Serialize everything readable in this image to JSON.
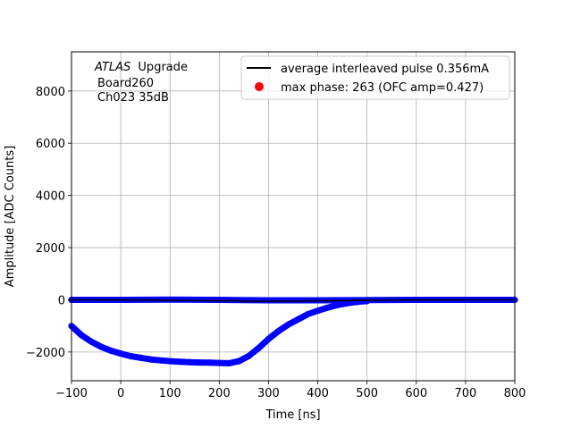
{
  "chart_data": {
    "type": "scatter",
    "xlabel": "Time [ns]",
    "ylabel": "Amplitude [ADC Counts]",
    "xlim": [
      -100,
      800
    ],
    "ylim": [
      -3100,
      9500
    ],
    "xticks": [
      -100,
      0,
      100,
      200,
      300,
      400,
      500,
      600,
      700,
      800
    ],
    "yticks": [
      -2000,
      0,
      2000,
      4000,
      6000,
      8000
    ],
    "xtick_labels": [
      "−100",
      "0",
      "100",
      "200",
      "300",
      "400",
      "500",
      "600",
      "700",
      "800"
    ],
    "ytick_labels": [
      "−2000",
      "0",
      "2000",
      "4000",
      "6000",
      "8000"
    ],
    "grid": true,
    "legend_position": "top-right",
    "annotation": {
      "atlas": "ATLAS",
      "upgrade": "Upgrade",
      "board": "Board260",
      "channel": "Ch023 35dB"
    },
    "series": [
      {
        "name": "average interleaved pulse 0.356mA",
        "kind": "line",
        "color": "#000000",
        "x": [
          -100,
          0,
          100,
          200,
          300,
          400,
          500,
          600,
          700,
          800
        ],
        "y": [
          0,
          -5,
          -15,
          -35,
          -60,
          -40,
          -15,
          -5,
          0,
          0
        ]
      },
      {
        "name": "max phase: 263 (OFC amp=0.427)",
        "kind": "point",
        "color": "#ff0000",
        "x": [],
        "y": []
      },
      {
        "name": "",
        "kind": "samples-baseline",
        "color": "#0000ff",
        "x": [
          -100,
          0,
          100,
          200,
          300,
          400,
          500,
          600,
          700,
          800
        ],
        "y": [
          0,
          0,
          10,
          0,
          -20,
          -20,
          -10,
          0,
          0,
          0
        ]
      },
      {
        "name": "",
        "kind": "samples-pulse",
        "color": "#0000ff",
        "x": [
          -100,
          -80,
          -60,
          -40,
          -20,
          0,
          20,
          40,
          60,
          80,
          100,
          120,
          140,
          160,
          180,
          200,
          220,
          240,
          260,
          280,
          300,
          320,
          340,
          360,
          380,
          400,
          420,
          440,
          460,
          480,
          500
        ],
        "y": [
          -1000,
          -1350,
          -1600,
          -1800,
          -1950,
          -2060,
          -2160,
          -2220,
          -2280,
          -2320,
          -2350,
          -2370,
          -2390,
          -2400,
          -2410,
          -2420,
          -2430,
          -2350,
          -2150,
          -1850,
          -1500,
          -1200,
          -950,
          -750,
          -550,
          -420,
          -300,
          -200,
          -130,
          -80,
          -50
        ]
      }
    ]
  }
}
